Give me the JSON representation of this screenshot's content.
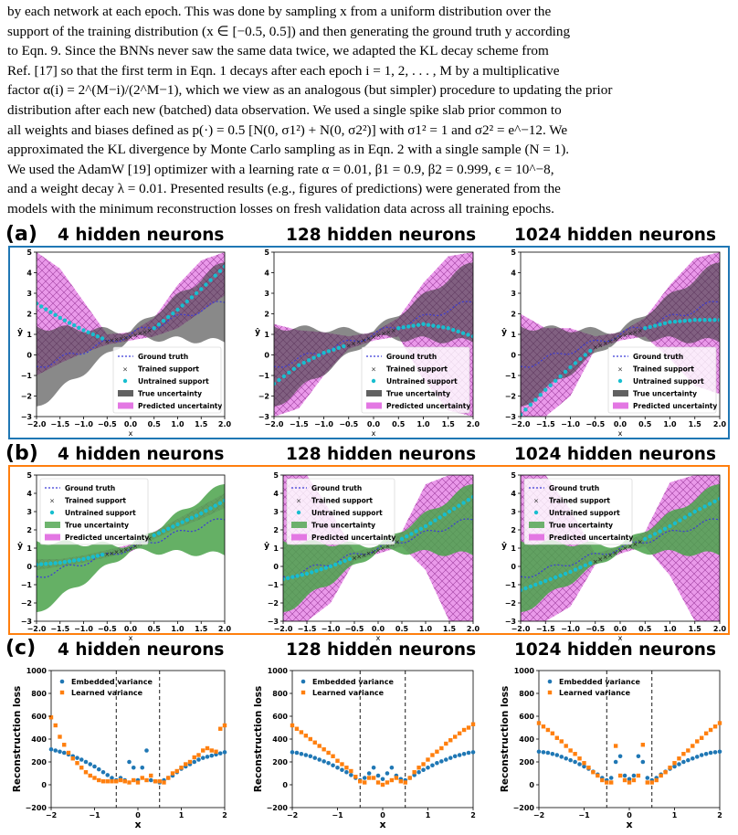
{
  "paragraph": {
    "lines": [
      "by each network at each epoch. This was done by sampling x from a uniform distribution over the",
      "support of the training distribution (x ∈ [−0.5, 0.5]) and then generating the ground truth y according",
      "to Eqn. 9. Since the BNNs never saw the same data twice, we adapted the KL decay scheme from",
      "Ref. [17] so that the first term in Eqn. 1 decays after each epoch i = 1, 2, . . . , M by a multiplicative",
      "factor α(i) = 2^(M−i)/(2^M−1), which we view as an analogous (but simpler) procedure to updating the prior",
      "distribution after each new (batched) data observation. We used a single spike slab prior common to",
      "all weights and biases defined as p(·) = 0.5 [N(0, σ1²) + N(0, σ2²)] with σ1² = 1 and σ2² = e^−12. We",
      "approximated the KL divergence by Monte Carlo sampling as in Eqn. 2 with a single sample (N = 1).",
      "We used the AdamW [19] optimizer with a learning rate α = 0.01, β1 = 0.9, β2 = 0.999, ϵ = 10^−8,",
      "and a weight decay λ = 0.01. Presented results (e.g., figures of predictions) were generated from the",
      "models with the minimum reconstruction losses on fresh validation data across all training epochs."
    ]
  },
  "rows": [
    {
      "label": "(a)",
      "frame_color": "#1f77b4"
    },
    {
      "label": "(b)",
      "frame_color": "#ff7f0e"
    },
    {
      "label": "(c)",
      "frame_color": ""
    }
  ],
  "panel_titles": [
    "4 hidden neurons",
    "128 hidden neurons",
    "1024 hidden neurons"
  ],
  "pred_axes": {
    "xlabel": "x",
    "ylabel": "ŷ",
    "xticks": [
      "−2.0",
      "−1.5",
      "−1.0",
      "−0.5",
      "0.0",
      "0.5",
      "1.0",
      "1.5",
      "2.0"
    ],
    "yticks": [
      "−3",
      "−2",
      "−1",
      "0",
      "1",
      "2",
      "3",
      "4",
      "5"
    ],
    "legend": [
      "Ground truth",
      "Trained support",
      "Untrained support",
      "True uncertainty",
      "Predicted uncertainty"
    ]
  },
  "loss_axes": {
    "xlabel": "x",
    "ylabel": "Reconstruction loss",
    "xticks": [
      "−2",
      "−1",
      "0",
      "1",
      "2"
    ],
    "yticks": [
      "−200",
      "0",
      "200",
      "400",
      "600",
      "800",
      "1000"
    ],
    "legend": [
      "Embedded variance",
      "Learned variance"
    ]
  },
  "colors": {
    "ground_truth": "#3b3bd6",
    "trained": "#222222",
    "untrained": "#17becf",
    "true_unc_fill": "#3a3a3a",
    "true_unc_fill_b": "#4aa24a",
    "pred_unc_fill": "#e377e3",
    "embedded": "#1f77b4",
    "learned": "#ff7f0e"
  },
  "chart_data": [
    {
      "type": "line",
      "row": "a",
      "title": "4 hidden neurons",
      "xlim": [
        -2,
        2
      ],
      "ylim": [
        -3,
        5
      ],
      "pred_mean": {
        "x": [
          -2,
          -1.5,
          -1,
          -0.5,
          0,
          0.5,
          1,
          1.5,
          2
        ],
        "y": [
          2.5,
          1.8,
          1.2,
          0.7,
          0.9,
          1.3,
          2.2,
          3.2,
          4.3
        ]
      },
      "pred_band": {
        "lower": [
          -1.0,
          -0.4,
          0.1,
          0.5,
          0.7,
          0.9,
          1.3,
          2.1,
          2.9
        ],
        "upper": [
          5.0,
          4.2,
          2.6,
          1.0,
          1.1,
          1.8,
          3.4,
          4.6,
          5.0
        ]
      }
    },
    {
      "type": "line",
      "row": "a",
      "title": "128 hidden neurons",
      "xlim": [
        -2,
        2
      ],
      "ylim": [
        -3,
        5
      ],
      "pred_mean": {
        "x": [
          -2,
          -1.5,
          -1,
          -0.5,
          0,
          0.5,
          1,
          1.5,
          2
        ],
        "y": [
          -1.4,
          -0.5,
          0.1,
          0.5,
          0.9,
          1.3,
          1.5,
          1.3,
          0.9
        ]
      },
      "pred_band": {
        "lower": [
          -3.0,
          -2.6,
          -1.0,
          0.3,
          0.7,
          0.9,
          -1.2,
          -2.7,
          -3.0
        ],
        "upper": [
          1.5,
          1.2,
          1.1,
          0.9,
          1.1,
          1.8,
          3.5,
          4.8,
          5.0
        ]
      }
    },
    {
      "type": "line",
      "row": "a",
      "title": "1024 hidden neurons",
      "xlim": [
        -2,
        2
      ],
      "ylim": [
        -3,
        5
      ],
      "pred_mean": {
        "x": [
          -2,
          -1.5,
          -1,
          -0.5,
          0,
          0.5,
          1,
          1.5,
          2
        ],
        "y": [
          -2.9,
          -1.7,
          -0.6,
          0.4,
          0.9,
          1.3,
          1.6,
          1.7,
          1.7
        ]
      },
      "pred_band": {
        "lower": [
          -3.0,
          -3.0,
          -2.0,
          0.3,
          0.7,
          0.9,
          -0.2,
          -1.5,
          -1.9
        ],
        "upper": [
          2.0,
          1.3,
          1.3,
          0.9,
          1.1,
          1.8,
          3.4,
          4.7,
          5.0
        ]
      }
    },
    {
      "type": "line",
      "row": "b",
      "title": "4 hidden neurons",
      "xlim": [
        -2,
        2
      ],
      "ylim": [
        -3,
        5
      ],
      "pred_mean": {
        "x": [
          -2,
          -1.5,
          -1,
          -0.5,
          0,
          0.5,
          1,
          1.5,
          2
        ],
        "y": [
          0.1,
          0.2,
          0.4,
          0.7,
          1.0,
          1.7,
          2.3,
          2.9,
          3.6
        ]
      },
      "pred_band": {
        "lower": [
          -0.2,
          0.0,
          0.2,
          0.5,
          0.8,
          1.5,
          2.1,
          2.6,
          3.2
        ],
        "upper": [
          0.4,
          0.4,
          0.6,
          0.9,
          1.2,
          1.9,
          2.6,
          3.3,
          4.0
        ]
      }
    },
    {
      "type": "line",
      "row": "b",
      "title": "128 hidden neurons",
      "xlim": [
        -2,
        2
      ],
      "ylim": [
        -3,
        5
      ],
      "pred_mean": {
        "x": [
          -2,
          -1.5,
          -1,
          -0.5,
          0,
          0.5,
          1,
          1.5,
          2
        ],
        "y": [
          -0.7,
          -0.4,
          0.0,
          0.5,
          0.9,
          1.5,
          2.2,
          3.0,
          3.8
        ]
      },
      "pred_band": {
        "lower": [
          -3.0,
          -3.0,
          -2.0,
          0.3,
          0.7,
          1.1,
          -0.2,
          -3.0,
          -3.0
        ],
        "upper": [
          5.0,
          5.0,
          3.0,
          0.8,
          1.1,
          1.9,
          4.5,
          5.0,
          5.0
        ]
      }
    },
    {
      "type": "line",
      "row": "b",
      "title": "1024 hidden neurons",
      "xlim": [
        -2,
        2
      ],
      "ylim": [
        -3,
        5
      ],
      "pred_mean": {
        "x": [
          -2,
          -1.5,
          -1,
          -0.5,
          0,
          0.5,
          1,
          1.5,
          2
        ],
        "y": [
          -1.3,
          -0.8,
          -0.3,
          0.3,
          0.9,
          1.5,
          2.2,
          3.0,
          3.7
        ]
      },
      "pred_band": {
        "lower": [
          -3.0,
          -3.0,
          -2.2,
          0.1,
          0.7,
          1.1,
          -0.5,
          -3.0,
          -3.0
        ],
        "upper": [
          5.0,
          5.0,
          3.1,
          0.7,
          1.1,
          1.9,
          4.6,
          5.0,
          5.0
        ]
      }
    },
    {
      "type": "scatter",
      "row": "c",
      "title": "4 hidden neurons",
      "xlim": [
        -2,
        2
      ],
      "ylim": [
        -200,
        1000
      ],
      "vlines": [
        -0.5,
        0.5
      ],
      "x": [
        -2,
        -1.9,
        -1.8,
        -1.7,
        -1.6,
        -1.5,
        -1.4,
        -1.3,
        -1.2,
        -1.1,
        -1,
        -0.9,
        -0.8,
        -0.7,
        -0.6,
        -0.5,
        -0.4,
        -0.3,
        -0.2,
        -0.1,
        0,
        0.1,
        0.2,
        0.3,
        0.4,
        0.5,
        0.6,
        0.7,
        0.8,
        0.9,
        1,
        1.1,
        1.2,
        1.3,
        1.4,
        1.5,
        1.6,
        1.7,
        1.8,
        1.9,
        2
      ],
      "series": [
        {
          "name": "Embedded variance",
          "values": [
            310,
            300,
            290,
            280,
            265,
            250,
            235,
            220,
            200,
            180,
            160,
            135,
            110,
            85,
            60,
            40,
            60,
            40,
            200,
            150,
            40,
            150,
            300,
            40,
            30,
            20,
            40,
            60,
            80,
            110,
            140,
            160,
            180,
            200,
            220,
            235,
            245,
            255,
            265,
            275,
            285
          ]
        },
        {
          "name": "Learned variance",
          "values": [
            590,
            520,
            420,
            350,
            280,
            230,
            190,
            150,
            110,
            80,
            60,
            40,
            30,
            30,
            30,
            30,
            40,
            30,
            20,
            40,
            20,
            60,
            40,
            80,
            30,
            30,
            20,
            60,
            100,
            120,
            150,
            180,
            200,
            240,
            260,
            300,
            320,
            300,
            290,
            490,
            520
          ]
        }
      ]
    },
    {
      "type": "scatter",
      "row": "c",
      "title": "128 hidden neurons",
      "xlim": [
        -2,
        2
      ],
      "ylim": [
        -200,
        1000
      ],
      "vlines": [
        -0.5,
        0.5
      ],
      "x": [
        -2,
        -1.9,
        -1.8,
        -1.7,
        -1.6,
        -1.5,
        -1.4,
        -1.3,
        -1.2,
        -1.1,
        -1,
        -0.9,
        -0.8,
        -0.7,
        -0.6,
        -0.5,
        -0.4,
        -0.3,
        -0.2,
        -0.1,
        0,
        0.1,
        0.2,
        0.3,
        0.4,
        0.5,
        0.6,
        0.7,
        0.8,
        0.9,
        1,
        1.1,
        1.2,
        1.3,
        1.4,
        1.5,
        1.6,
        1.7,
        1.8,
        1.9,
        2
      ],
      "series": [
        {
          "name": "Embedded variance",
          "values": [
            285,
            280,
            270,
            260,
            250,
            235,
            220,
            205,
            190,
            170,
            150,
            130,
            110,
            85,
            60,
            40,
            60,
            100,
            150,
            80,
            50,
            100,
            150,
            80,
            50,
            40,
            60,
            85,
            110,
            130,
            150,
            170,
            190,
            205,
            220,
            235,
            250,
            260,
            270,
            280,
            285
          ]
        },
        {
          "name": "Learned variance",
          "values": [
            520,
            490,
            460,
            430,
            400,
            370,
            340,
            310,
            280,
            250,
            210,
            180,
            150,
            120,
            70,
            30,
            20,
            60,
            60,
            20,
            0,
            20,
            40,
            60,
            30,
            20,
            60,
            110,
            150,
            180,
            220,
            260,
            290,
            320,
            360,
            390,
            420,
            450,
            480,
            500,
            530
          ]
        }
      ]
    },
    {
      "type": "scatter",
      "row": "c",
      "title": "1024 hidden neurons",
      "xlim": [
        -2,
        2
      ],
      "ylim": [
        -200,
        1000
      ],
      "vlines": [
        -0.5,
        0.5
      ],
      "x": [
        -2,
        -1.9,
        -1.8,
        -1.7,
        -1.6,
        -1.5,
        -1.4,
        -1.3,
        -1.2,
        -1.1,
        -1,
        -0.9,
        -0.8,
        -0.7,
        -0.6,
        -0.5,
        -0.4,
        -0.3,
        -0.2,
        -0.1,
        0,
        0.1,
        0.2,
        0.3,
        0.4,
        0.5,
        0.6,
        0.7,
        0.8,
        0.9,
        1,
        1.1,
        1.2,
        1.3,
        1.4,
        1.5,
        1.6,
        1.7,
        1.8,
        1.9,
        2
      ],
      "series": [
        {
          "name": "Embedded variance",
          "values": [
            290,
            285,
            280,
            270,
            260,
            245,
            230,
            215,
            200,
            180,
            160,
            140,
            115,
            90,
            60,
            40,
            60,
            200,
            250,
            80,
            50,
            80,
            250,
            200,
            60,
            40,
            60,
            90,
            115,
            140,
            160,
            180,
            200,
            215,
            230,
            245,
            260,
            270,
            280,
            285,
            290
          ]
        },
        {
          "name": "Learned variance",
          "values": [
            540,
            510,
            480,
            450,
            410,
            380,
            340,
            300,
            270,
            230,
            190,
            150,
            110,
            80,
            40,
            20,
            20,
            340,
            80,
            40,
            20,
            40,
            80,
            350,
            20,
            20,
            40,
            80,
            110,
            150,
            190,
            230,
            270,
            300,
            340,
            380,
            410,
            450,
            480,
            510,
            540
          ]
        }
      ]
    }
  ]
}
